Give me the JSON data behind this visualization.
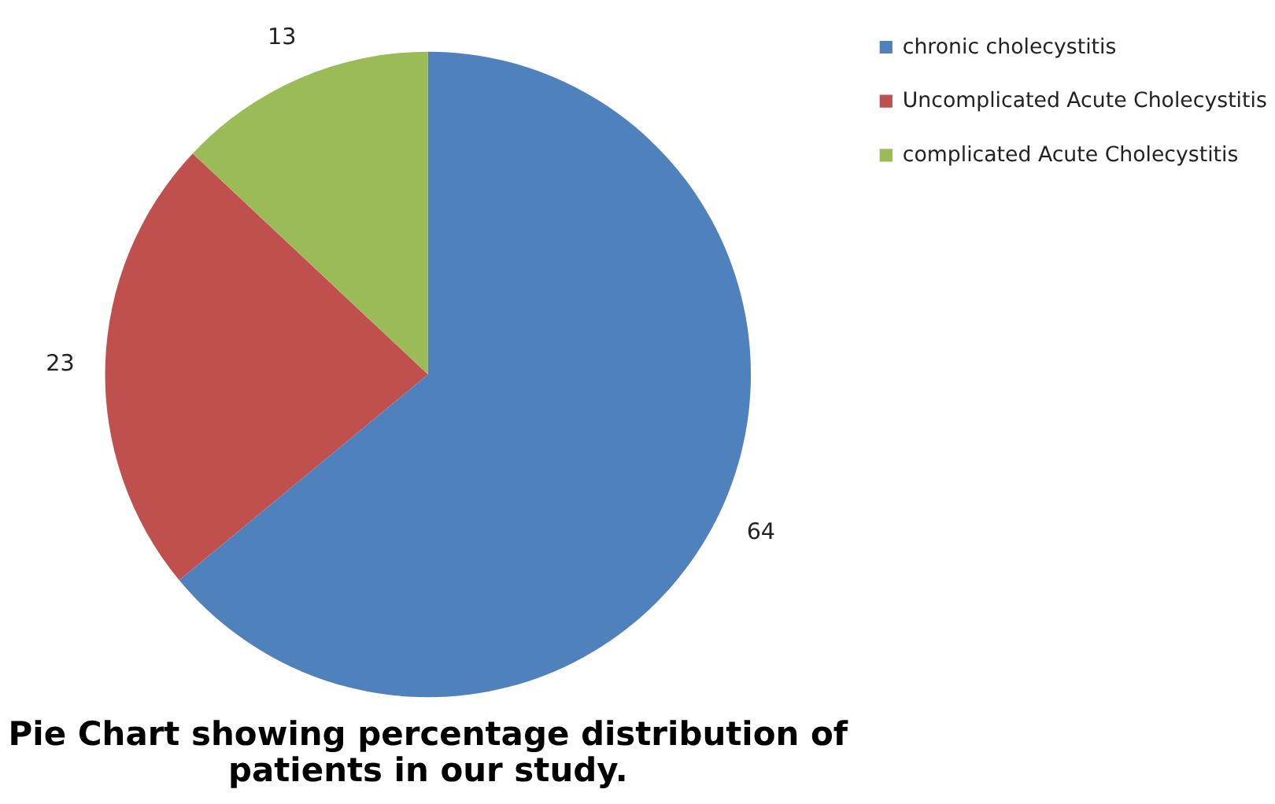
{
  "chart_data": {
    "type": "pie",
    "title": "Pie Chart showing percentage distribution of patients in our study.",
    "categories": [
      "chronic cholecystitis",
      "Uncomplicated Acute Cholecystitis",
      "complicated Acute Cholecystitis"
    ],
    "values": [
      64,
      23,
      13
    ],
    "colors": [
      "#4f81bd",
      "#c0504d",
      "#9bbb59"
    ],
    "data_labels": true,
    "legend": "right"
  }
}
